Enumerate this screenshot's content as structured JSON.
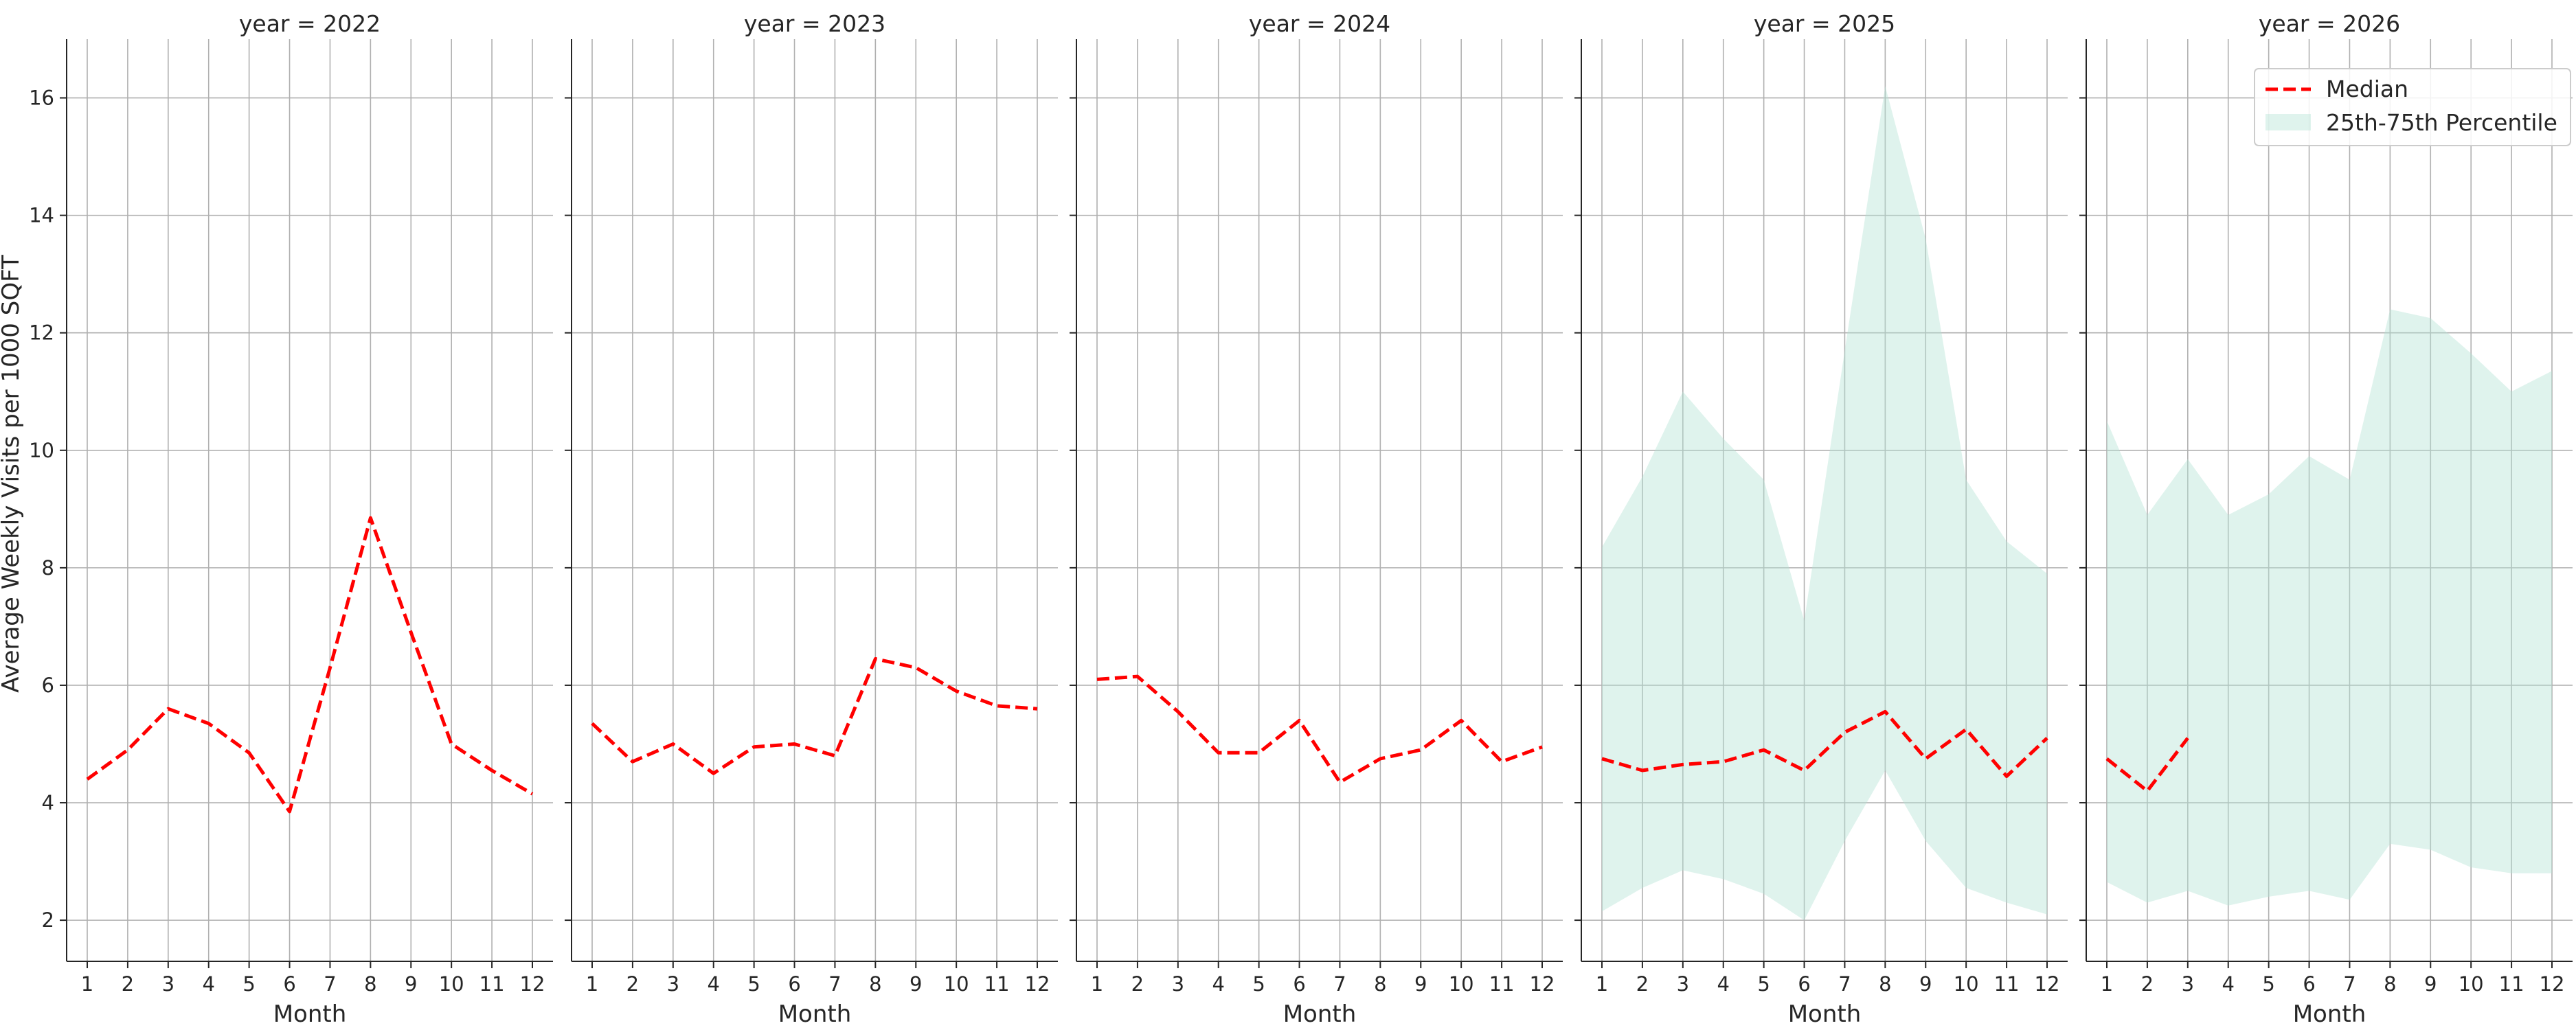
{
  "chart_data": {
    "type": "line",
    "ylabel": "Average Weekly Visits per 1000 SQFT",
    "xlabel": "Month",
    "ylim": [
      1.3,
      17.0
    ],
    "yticks": [
      2,
      4,
      6,
      8,
      10,
      12,
      14,
      16
    ],
    "xticks": [
      1,
      2,
      3,
      4,
      5,
      6,
      7,
      8,
      9,
      10,
      11,
      12
    ],
    "grid": true,
    "legend": {
      "placement": "top-right of last panel",
      "entries": [
        {
          "label": "Median",
          "color": "#ff0000",
          "style": "dashed-line"
        },
        {
          "label": "25th-75th Percentile",
          "color": "#b2e2d3",
          "style": "filled-area"
        }
      ]
    },
    "panels": [
      {
        "title": "year = 2022",
        "months": [
          1,
          2,
          3,
          4,
          5,
          6,
          7,
          8,
          9,
          10,
          11,
          12
        ],
        "median": [
          4.4,
          4.9,
          5.6,
          5.35,
          4.85,
          3.85,
          6.3,
          8.85,
          6.9,
          5.0,
          4.55,
          4.15
        ],
        "p25": [],
        "p75": []
      },
      {
        "title": "year = 2023",
        "months": [
          1,
          2,
          3,
          4,
          5,
          6,
          7,
          8,
          9,
          10,
          11,
          12
        ],
        "median": [
          5.35,
          4.7,
          5.0,
          4.5,
          4.95,
          5.0,
          4.8,
          6.45,
          6.3,
          5.9,
          5.65,
          5.6
        ],
        "p25": [],
        "p75": []
      },
      {
        "title": "year = 2024",
        "months": [
          1,
          2,
          3,
          4,
          5,
          6,
          7,
          8,
          9,
          10,
          11,
          12
        ],
        "median": [
          6.1,
          6.15,
          5.55,
          4.85,
          4.85,
          5.4,
          4.35,
          4.75,
          4.9,
          5.4,
          4.7,
          4.95
        ],
        "p25": [],
        "p75": []
      },
      {
        "title": "year = 2025",
        "months": [
          1,
          2,
          3,
          4,
          5,
          6,
          7,
          8,
          9,
          10,
          11,
          12
        ],
        "median": [
          4.75,
          4.55,
          4.65,
          4.7,
          4.9,
          4.55,
          5.2,
          5.55,
          4.75,
          5.25,
          4.45,
          5.1
        ],
        "p25": [
          2.15,
          2.55,
          2.85,
          2.7,
          2.45,
          2.0,
          3.35,
          4.55,
          3.35,
          2.55,
          2.3,
          2.1
        ],
        "p75": [
          8.35,
          9.55,
          11.0,
          10.2,
          9.5,
          7.1,
          11.7,
          16.2,
          13.6,
          9.5,
          8.45,
          7.9
        ]
      },
      {
        "title": "year = 2026",
        "months": [
          1,
          2,
          3
        ],
        "median": [
          4.75,
          4.2,
          5.1
        ],
        "band_months": [
          1,
          2,
          3,
          4,
          5,
          6,
          7,
          8,
          9,
          10,
          11,
          12
        ],
        "p25": [
          2.65,
          2.3,
          2.5,
          2.25,
          2.4,
          2.5,
          2.35,
          3.3,
          3.2,
          2.9,
          2.8,
          2.8
        ],
        "p75": [
          10.5,
          8.9,
          9.85,
          8.9,
          9.25,
          9.9,
          9.5,
          12.4,
          12.25,
          11.65,
          11.0,
          11.35
        ]
      }
    ]
  }
}
